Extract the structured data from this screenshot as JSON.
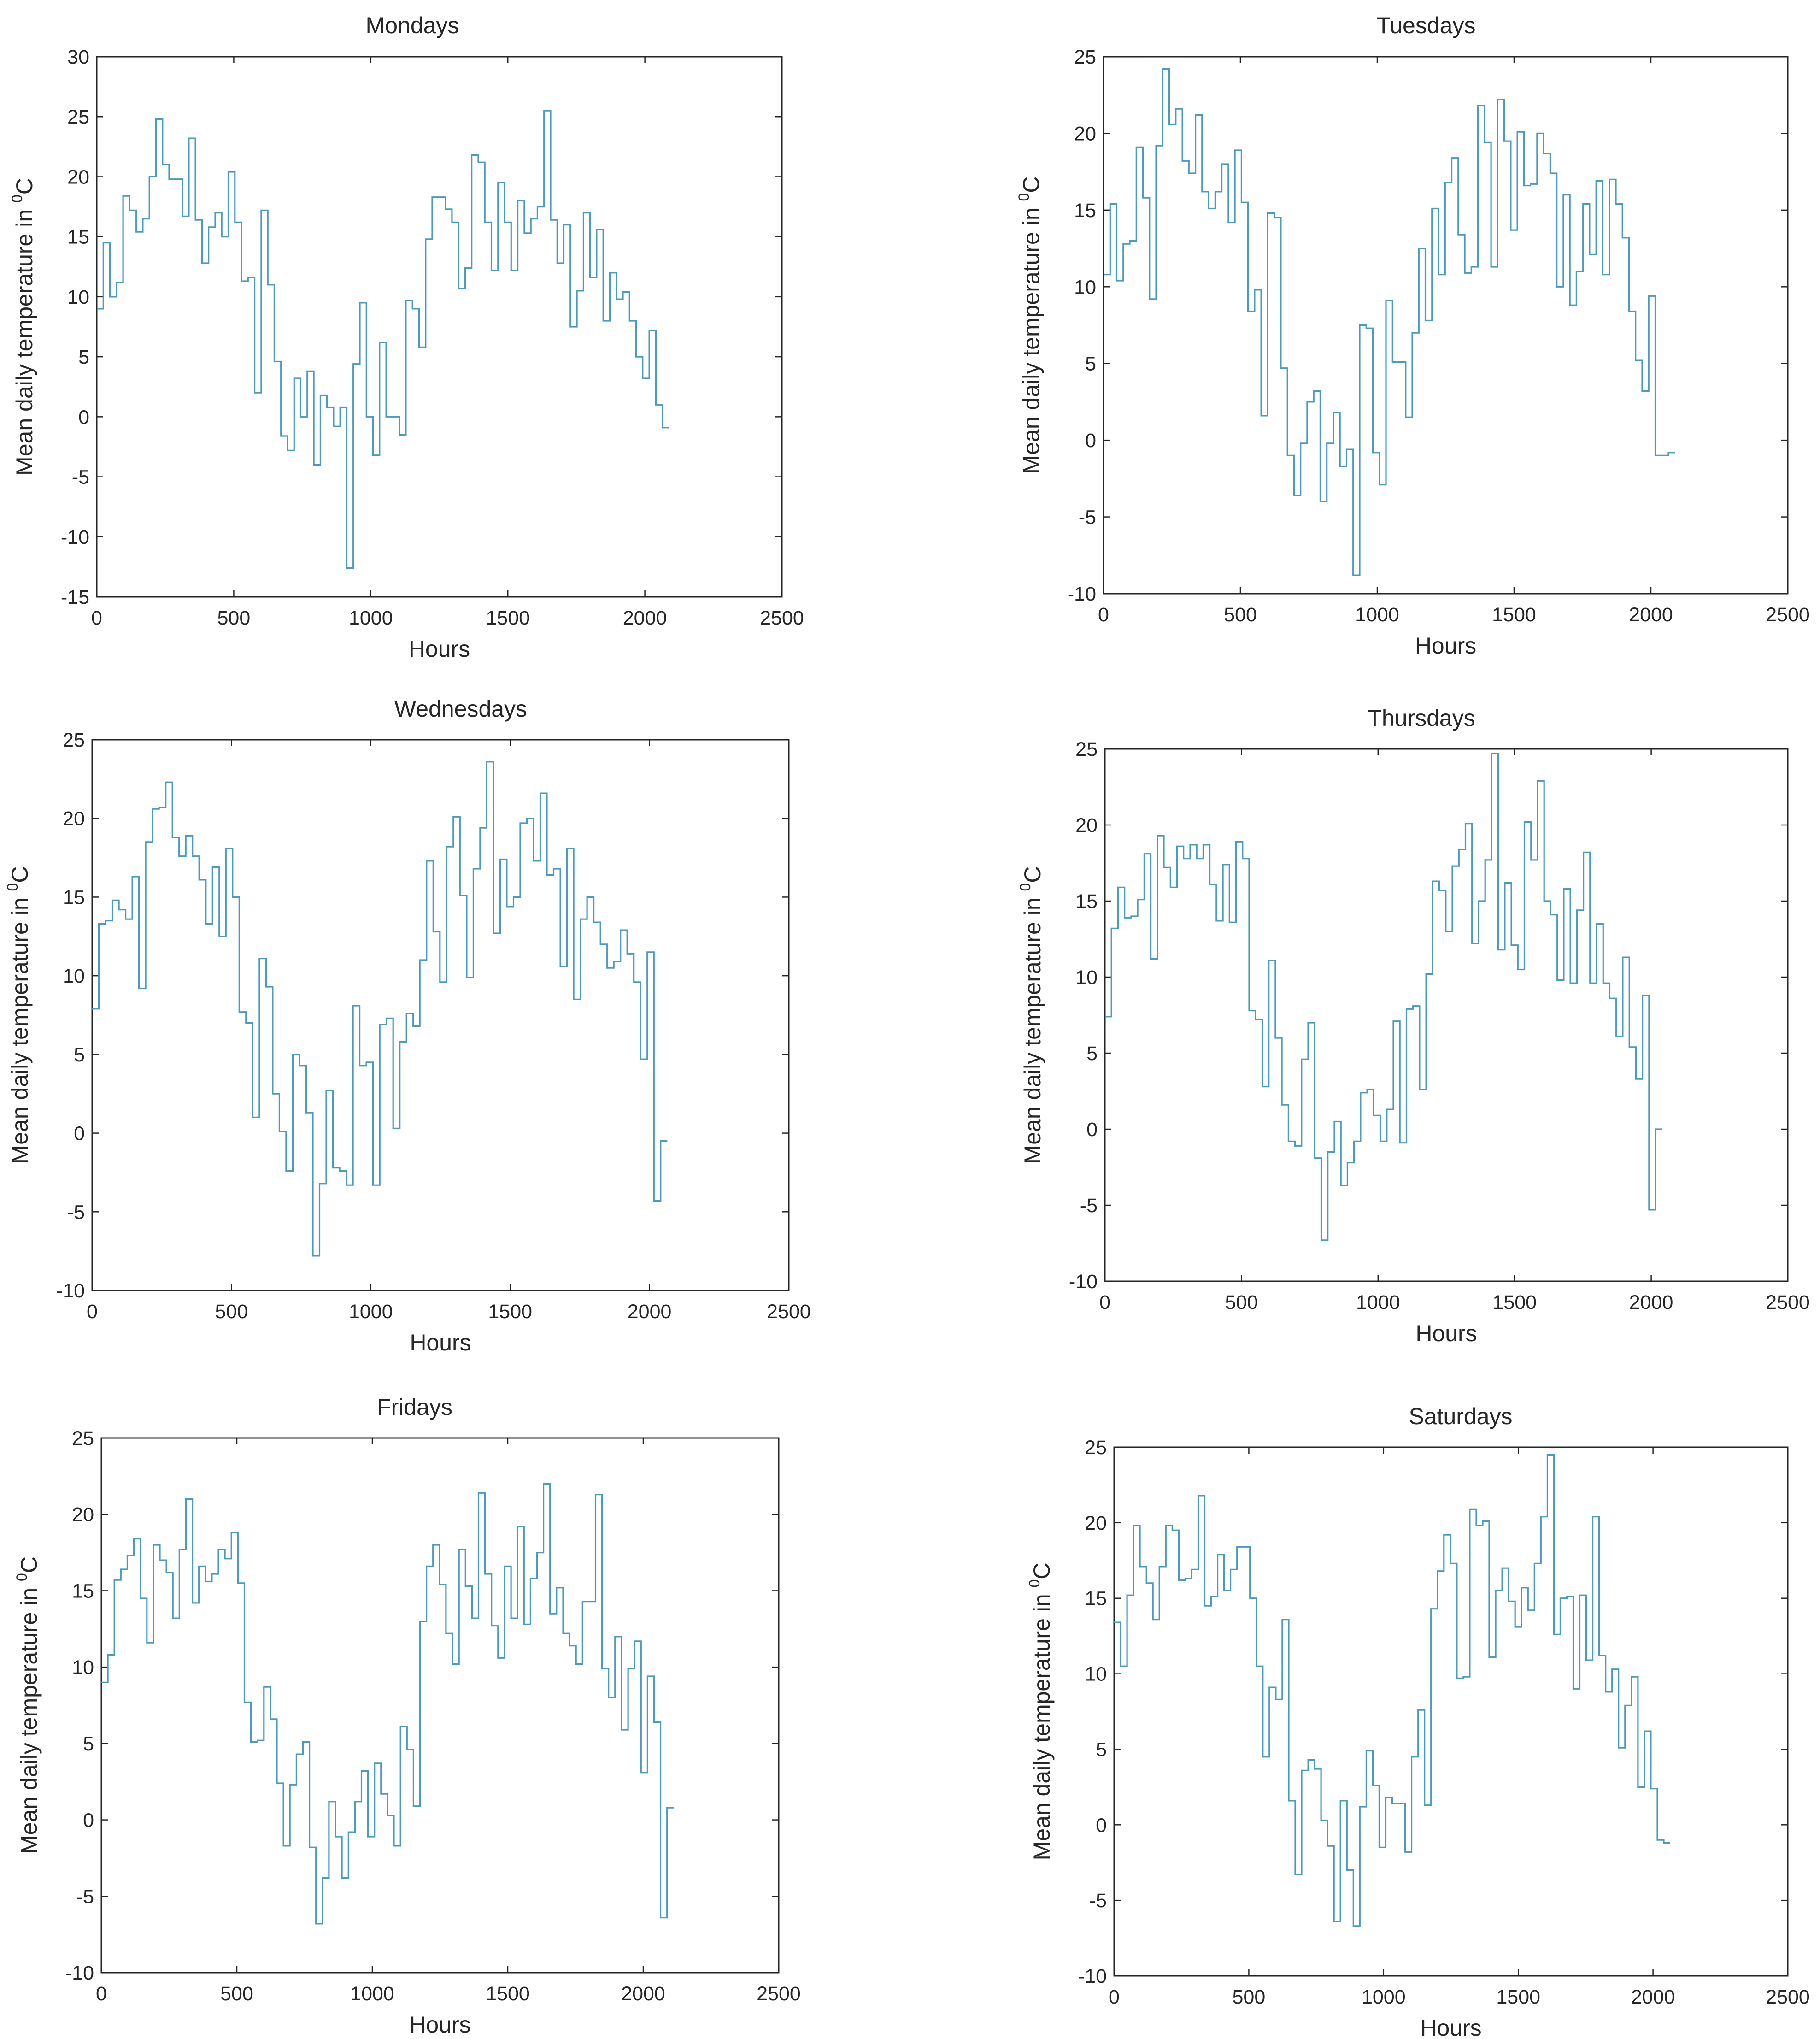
{
  "figure": {
    "line_color": "#4A9BBF"
  },
  "chart_data": [
    {
      "type": "line",
      "title": "Mondays",
      "xlabel": "Hours",
      "ylabel": "Mean daily temperature in ",
      "ylabel_sup": "0",
      "ylabel_unit": "C",
      "xlim": [
        0,
        2500
      ],
      "ylim": [
        -15,
        30
      ],
      "xticks": [
        0,
        500,
        1000,
        1500,
        2000,
        2500
      ],
      "yticks": [
        -15,
        -10,
        -5,
        0,
        5,
        10,
        15,
        20,
        25,
        30
      ],
      "xticklabels": [
        "0",
        "500",
        "1000",
        "1500",
        "2000",
        "2500"
      ],
      "yticklabels": [
        "-15",
        "-10",
        "-5",
        "0",
        "5",
        "10",
        "15",
        "20",
        "25",
        "30"
      ],
      "step_hours": 24,
      "series": [
        {
          "values": [
            9,
            14.5,
            10,
            11.2,
            18.4,
            17.2,
            15.4,
            16.5,
            20,
            24.8,
            21,
            19.8,
            19.8,
            16.7,
            23.2,
            16.4,
            12.8,
            15.8,
            17,
            15,
            20.4,
            16.2,
            11.3,
            11.6,
            2,
            17.2,
            11,
            4.6,
            -1.6,
            -2.8,
            3.2,
            0,
            3.8,
            -4,
            1.8,
            0.8,
            -0.8,
            0.8,
            -12.6,
            4.4,
            9.5,
            0,
            -3.2,
            6.2,
            0,
            0,
            -1.5,
            9.7,
            9,
            5.8,
            14.8,
            18.3,
            18.3,
            17.3,
            16.2,
            10.7,
            12.4,
            21.8,
            21.2,
            16.2,
            12.2,
            19.5,
            16.2,
            12.2,
            18,
            15.3,
            16.5,
            17.5,
            25.5,
            16.4,
            12.8,
            16,
            7.5,
            10.5,
            17,
            11.6,
            15.6,
            8,
            12,
            9.8,
            10.4,
            8,
            5,
            3.2,
            7.2,
            1,
            -0.9
          ]
        }
      ]
    },
    {
      "type": "line",
      "title": "Tuesdays",
      "xlabel": "Hours",
      "ylabel": "Mean daily temperature in ",
      "ylabel_sup": "0",
      "ylabel_unit": "C",
      "xlim": [
        0,
        2500
      ],
      "ylim": [
        -10,
        25
      ],
      "xticks": [
        0,
        500,
        1000,
        1500,
        2000,
        2500
      ],
      "yticks": [
        -10,
        -5,
        0,
        5,
        10,
        15,
        20,
        25
      ],
      "xticklabels": [
        "0",
        "500",
        "1000",
        "1500",
        "2000",
        "2500"
      ],
      "yticklabels": [
        "-10",
        "-5",
        "0",
        "5",
        "10",
        "15",
        "20",
        "25"
      ],
      "step_hours": 24,
      "series": [
        {
          "values": [
            10.8,
            15.4,
            10.4,
            12.8,
            13,
            19.1,
            15.8,
            9.2,
            19.2,
            24.2,
            20.6,
            21.6,
            18.2,
            17.4,
            21.2,
            16.2,
            15.1,
            16.2,
            18,
            14.2,
            18.9,
            15.5,
            8.4,
            9.8,
            1.6,
            14.8,
            14.5,
            4.7,
            -1,
            -3.6,
            -0.2,
            2.5,
            3.2,
            -4,
            -0.2,
            1.8,
            -1.7,
            -0.6,
            -8.8,
            7.5,
            7.3,
            -0.8,
            -2.9,
            9.1,
            5.1,
            5.1,
            1.5,
            7,
            12.5,
            7.8,
            15.1,
            10.8,
            16.8,
            18.4,
            13.4,
            10.9,
            11.3,
            21.8,
            19.4,
            11.3,
            22.2,
            19.5,
            13.7,
            20.1,
            16.6,
            16.7,
            20,
            18.7,
            17.4,
            10,
            16,
            8.8,
            11,
            15.4,
            12.1,
            16.9,
            10.8,
            17,
            15.4,
            13.2,
            8.4,
            5.2,
            3.2,
            9.4,
            -1,
            -1,
            -0.8
          ]
        }
      ]
    },
    {
      "type": "line",
      "title": "Wednesdays",
      "xlabel": "Hours",
      "ylabel": "Mean daily temperature in ",
      "ylabel_sup": "0",
      "ylabel_unit": "C",
      "xlim": [
        0,
        2500
      ],
      "ylim": [
        -10,
        25
      ],
      "xticks": [
        0,
        500,
        1000,
        1500,
        2000,
        2500
      ],
      "yticks": [
        -10,
        -5,
        0,
        5,
        10,
        15,
        20,
        25
      ],
      "xticklabels": [
        "0",
        "500",
        "1000",
        "1500",
        "2000",
        "2500"
      ],
      "yticklabels": [
        "-10",
        "-5",
        "0",
        "5",
        "10",
        "15",
        "20",
        "25"
      ],
      "step_hours": 24,
      "series": [
        {
          "values": [
            7.9,
            13.3,
            13.5,
            14.8,
            14.2,
            13.6,
            16.3,
            9.2,
            18.5,
            20.6,
            20.7,
            22.3,
            18.8,
            17.6,
            18.9,
            17.6,
            16.1,
            13.3,
            16.9,
            12.5,
            18.1,
            15,
            7.7,
            7,
            1,
            11.1,
            9.3,
            2.5,
            0.1,
            -2.4,
            5,
            4.3,
            1.3,
            -7.8,
            -3.2,
            2.7,
            -2.2,
            -2.4,
            -3.3,
            8.1,
            4.3,
            4.5,
            -3.3,
            6.9,
            7.3,
            0.3,
            5.8,
            7.6,
            6.8,
            11,
            17.3,
            12.8,
            9.6,
            18.2,
            20.1,
            15.1,
            9.9,
            16.8,
            19.4,
            23.6,
            12.7,
            17.4,
            14.4,
            15,
            19.7,
            20,
            17.3,
            21.6,
            16.4,
            16.8,
            10.6,
            18.1,
            8.5,
            13.6,
            15,
            13.4,
            12,
            10.5,
            10.9,
            12.9,
            11.4,
            9.6,
            4.7,
            11.5,
            -4.3,
            -0.5
          ]
        }
      ]
    },
    {
      "type": "line",
      "title": "Thursdays",
      "xlabel": "Hours",
      "ylabel": "Mean daily temperature in ",
      "ylabel_sup": "0",
      "ylabel_unit": "C",
      "xlim": [
        0,
        2500
      ],
      "ylim": [
        -10,
        25
      ],
      "xticks": [
        0,
        500,
        1000,
        1500,
        2000,
        2500
      ],
      "yticks": [
        -10,
        -5,
        0,
        5,
        10,
        15,
        20,
        25
      ],
      "xticklabels": [
        "0",
        "500",
        "1000",
        "1500",
        "2000",
        "2500"
      ],
      "yticklabels": [
        "-10",
        "-5",
        "0",
        "5",
        "10",
        "15",
        "20",
        "25"
      ],
      "step_hours": 24,
      "series": [
        {
          "values": [
            7.4,
            13.2,
            15.9,
            13.9,
            14,
            15.1,
            18.1,
            11.2,
            19.3,
            17.2,
            15.9,
            18.6,
            17.8,
            18.7,
            17.8,
            18.7,
            16.1,
            13.7,
            17.4,
            13.6,
            18.9,
            17.8,
            7.8,
            7.2,
            2.8,
            11.1,
            6,
            1.6,
            -0.8,
            -1.1,
            4.6,
            7,
            -1.9,
            -7.3,
            -1.5,
            0.5,
            -3.7,
            -2.2,
            -0.8,
            2.4,
            2.6,
            0.9,
            -0.8,
            1.3,
            7.1,
            -0.9,
            7.9,
            8.1,
            2.6,
            10.2,
            16.3,
            15.7,
            13,
            17.3,
            18.4,
            20.1,
            12.2,
            15,
            17.7,
            24.7,
            11.8,
            16.2,
            12.1,
            10.5,
            20.2,
            17.7,
            22.9,
            15,
            14.1,
            9.8,
            15.8,
            9.6,
            14.4,
            18.2,
            9.6,
            13.5,
            9.6,
            8.6,
            6.1,
            11.3,
            5.4,
            3.3,
            8.8,
            -5.3,
            0
          ]
        }
      ]
    },
    {
      "type": "line",
      "title": "Fridays",
      "xlabel": "Hours",
      "ylabel": "Mean daily temperature in ",
      "ylabel_sup": "0",
      "ylabel_unit": "C",
      "xlim": [
        0,
        2500
      ],
      "ylim": [
        -10,
        25
      ],
      "xticks": [
        0,
        500,
        1000,
        1500,
        2000,
        2500
      ],
      "yticks": [
        -10,
        -5,
        0,
        5,
        10,
        15,
        20,
        25
      ],
      "xticklabels": [
        "0",
        "500",
        "1000",
        "1500",
        "2000",
        "2500"
      ],
      "yticklabels": [
        "-10",
        "-5",
        "0",
        "5",
        "10",
        "15",
        "20",
        "25"
      ],
      "step_hours": 24,
      "series": [
        {
          "values": [
            9,
            10.8,
            15.7,
            16.4,
            17.3,
            18.4,
            14.5,
            11.6,
            18,
            17,
            16.2,
            13.2,
            17.7,
            21,
            14.2,
            16.6,
            15.6,
            16.1,
            17.7,
            17.1,
            18.8,
            15.5,
            7.7,
            5.1,
            5.2,
            8.7,
            6.6,
            2.4,
            -1.7,
            2.3,
            4.3,
            5.1,
            -1.8,
            -6.8,
            -3.8,
            1.2,
            -1.1,
            -3.8,
            -0.8,
            1.2,
            3.2,
            -1.1,
            3.7,
            1.7,
            0.3,
            -1.7,
            6.1,
            4.6,
            0.9,
            13,
            16.6,
            18,
            15.4,
            12.2,
            10.2,
            17.7,
            15.3,
            13.2,
            21.4,
            16.1,
            12.7,
            10.6,
            16.6,
            13.2,
            19.2,
            12.8,
            15.8,
            17.5,
            22,
            13.5,
            15.2,
            12.2,
            11.4,
            10.2,
            14.3,
            14.3,
            21.3,
            9.9,
            8,
            12,
            5.9,
            9.9,
            11.7,
            3.1,
            9.4,
            6.4,
            -6.4,
            0.8
          ]
        }
      ]
    },
    {
      "type": "line",
      "title": "Saturdays",
      "xlabel": "Hours",
      "ylabel": "Mean daily temperature in ",
      "ylabel_sup": "0",
      "ylabel_unit": "C",
      "xlim": [
        0,
        2500
      ],
      "ylim": [
        -10,
        25
      ],
      "xticks": [
        0,
        500,
        1000,
        1500,
        2000,
        2500
      ],
      "yticks": [
        -10,
        -5,
        0,
        5,
        10,
        15,
        20,
        25
      ],
      "xticklabels": [
        "0",
        "500",
        "1000",
        "1500",
        "2000",
        "2500"
      ],
      "yticklabels": [
        "-10",
        "-5",
        "0",
        "5",
        "10",
        "15",
        "20",
        "25"
      ],
      "step_hours": 24,
      "series": [
        {
          "values": [
            13.4,
            10.5,
            15.2,
            19.8,
            17.1,
            16,
            13.6,
            17.1,
            19.8,
            19.5,
            16.2,
            16.3,
            16.9,
            21.8,
            14.5,
            15.1,
            17.9,
            15.5,
            16.9,
            18.4,
            18.4,
            15,
            10.5,
            4.5,
            9.1,
            8.3,
            13.6,
            1.6,
            -3.3,
            3.6,
            4.3,
            3.7,
            0.3,
            -1.4,
            -6.4,
            1.6,
            -3,
            -6.7,
            1.2,
            4.9,
            2.6,
            -1.5,
            1.8,
            1.4,
            1.4,
            -1.8,
            4.5,
            7.6,
            1.3,
            14.3,
            16.8,
            19.2,
            17.3,
            9.7,
            9.8,
            20.9,
            19.8,
            20.1,
            11.1,
            15.5,
            17,
            14.8,
            13.1,
            15.7,
            14.2,
            17.3,
            20.4,
            24.5,
            12.6,
            15,
            15.1,
            9,
            15.2,
            10.9,
            20.4,
            11.2,
            8.8,
            10.3,
            5.1,
            7.9,
            9.8,
            2.5,
            6.2,
            2.4,
            -1,
            -1.2
          ]
        }
      ]
    }
  ]
}
